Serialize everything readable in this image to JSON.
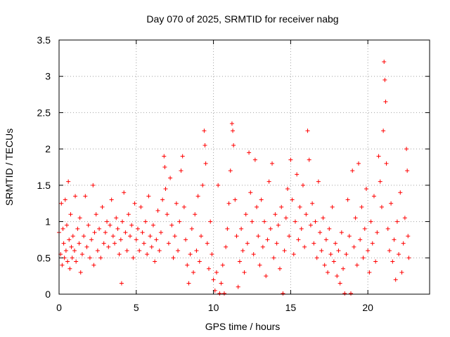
{
  "chart_data": {
    "type": "scatter",
    "title": "Day 070 of 2025, SRMTID for receiver nabg",
    "xlabel": "GPS time / hours",
    "ylabel": "SRMTID / TECUs",
    "xlim": [
      0,
      24
    ],
    "ylim": [
      0,
      3.5
    ],
    "x_ticks": [
      0,
      5,
      10,
      15,
      20
    ],
    "x_tick_labels": [
      "0",
      "5",
      "10",
      "15",
      "20"
    ],
    "y_ticks": [
      0,
      0.5,
      1,
      1.5,
      2,
      2.5,
      3,
      3.5
    ],
    "y_tick_labels": [
      "0",
      "0.5",
      "1",
      "1.5",
      "2",
      "2.5",
      "3",
      "3.5"
    ],
    "grid": true,
    "marker": "+",
    "color": "#ff0000",
    "series": [
      {
        "name": "SRMTID",
        "points": [
          [
            0.0,
            0.85
          ],
          [
            0.1,
            0.55
          ],
          [
            0.15,
            1.25
          ],
          [
            0.2,
            0.4
          ],
          [
            0.25,
            0.9
          ],
          [
            0.3,
            0.7
          ],
          [
            0.35,
            0.5
          ],
          [
            0.4,
            1.3
          ],
          [
            0.45,
            0.6
          ],
          [
            0.5,
            0.95
          ],
          [
            0.55,
            0.45
          ],
          [
            0.6,
            1.55
          ],
          [
            0.65,
            0.75
          ],
          [
            0.7,
            0.35
          ],
          [
            0.75,
            1.1
          ],
          [
            0.8,
            0.65
          ],
          [
            0.85,
            0.5
          ],
          [
            0.9,
            0.8
          ],
          [
            1.0,
            0.6
          ],
          [
            1.05,
            1.35
          ],
          [
            1.1,
            0.45
          ],
          [
            1.2,
            0.9
          ],
          [
            1.3,
            0.7
          ],
          [
            1.35,
            1.05
          ],
          [
            1.4,
            0.3
          ],
          [
            1.5,
            0.55
          ],
          [
            1.6,
            0.8
          ],
          [
            1.7,
            1.35
          ],
          [
            1.8,
            0.65
          ],
          [
            1.9,
            0.95
          ],
          [
            2.0,
            0.5
          ],
          [
            2.1,
            0.75
          ],
          [
            2.2,
            1.5
          ],
          [
            2.25,
            0.4
          ],
          [
            2.3,
            0.85
          ],
          [
            2.4,
            1.1
          ],
          [
            2.5,
            0.6
          ],
          [
            2.6,
            0.9
          ],
          [
            2.7,
            0.5
          ],
          [
            2.8,
            1.2
          ],
          [
            2.9,
            0.7
          ],
          [
            3.0,
            0.85
          ],
          [
            3.1,
            1.0
          ],
          [
            3.2,
            0.65
          ],
          [
            3.3,
            0.95
          ],
          [
            3.4,
            1.3
          ],
          [
            3.5,
            0.8
          ],
          [
            3.6,
            0.7
          ],
          [
            3.7,
            1.05
          ],
          [
            3.8,
            0.9
          ],
          [
            3.9,
            0.55
          ],
          [
            4.0,
            0.75
          ],
          [
            4.05,
            0.15
          ],
          [
            4.1,
            1.0
          ],
          [
            4.2,
            1.4
          ],
          [
            4.3,
            0.85
          ],
          [
            4.4,
            0.6
          ],
          [
            4.5,
            1.1
          ],
          [
            4.6,
            0.8
          ],
          [
            4.7,
            0.95
          ],
          [
            4.8,
            0.5
          ],
          [
            4.9,
            1.25
          ],
          [
            5.0,
            0.75
          ],
          [
            5.1,
            0.9
          ],
          [
            5.2,
            0.6
          ],
          [
            5.3,
            1.2
          ],
          [
            5.4,
            0.85
          ],
          [
            5.5,
            0.7
          ],
          [
            5.6,
            1.0
          ],
          [
            5.7,
            0.55
          ],
          [
            5.8,
            1.35
          ],
          [
            5.9,
            0.8
          ],
          [
            6.0,
            0.65
          ],
          [
            6.1,
            0.95
          ],
          [
            6.2,
            0.45
          ],
          [
            6.3,
            0.75
          ],
          [
            6.4,
            1.15
          ],
          [
            6.5,
            0.6
          ],
          [
            6.6,
            0.85
          ],
          [
            6.7,
            1.3
          ],
          [
            6.8,
            1.9
          ],
          [
            6.85,
            1.75
          ],
          [
            6.9,
            1.45
          ],
          [
            7.0,
            1.1
          ],
          [
            7.1,
            0.7
          ],
          [
            7.2,
            1.6
          ],
          [
            7.3,
            0.95
          ],
          [
            7.4,
            0.5
          ],
          [
            7.5,
            0.8
          ],
          [
            7.6,
            1.25
          ],
          [
            7.7,
            0.6
          ],
          [
            7.8,
            1.0
          ],
          [
            7.9,
            1.7
          ],
          [
            8.0,
            1.9
          ],
          [
            8.1,
            1.2
          ],
          [
            8.2,
            0.75
          ],
          [
            8.3,
            0.4
          ],
          [
            8.4,
            0.15
          ],
          [
            8.5,
            0.55
          ],
          [
            8.6,
            0.9
          ],
          [
            8.7,
            0.3
          ],
          [
            8.8,
            1.1
          ],
          [
            8.9,
            0.6
          ],
          [
            9.0,
            1.35
          ],
          [
            9.1,
            0.45
          ],
          [
            9.2,
            0.8
          ],
          [
            9.3,
            1.5
          ],
          [
            9.4,
            2.25
          ],
          [
            9.45,
            2.05
          ],
          [
            9.5,
            1.8
          ],
          [
            9.6,
            0.7
          ],
          [
            9.7,
            0.35
          ],
          [
            9.8,
            1.0
          ],
          [
            9.9,
            0.55
          ],
          [
            10.0,
            0.2
          ],
          [
            10.1,
            0.05
          ],
          [
            10.2,
            0.3
          ],
          [
            10.3,
            1.5
          ],
          [
            10.4,
            0.0
          ],
          [
            10.5,
            0.15
          ],
          [
            10.6,
            0.4
          ],
          [
            10.7,
            0.0
          ],
          [
            10.8,
            0.65
          ],
          [
            10.9,
            0.9
          ],
          [
            11.0,
            1.25
          ],
          [
            11.1,
            1.7
          ],
          [
            11.2,
            2.35
          ],
          [
            11.25,
            2.25
          ],
          [
            11.3,
            2.05
          ],
          [
            11.4,
            1.3
          ],
          [
            11.5,
            0.8
          ],
          [
            11.6,
            0.1
          ],
          [
            11.7,
            0.45
          ],
          [
            11.8,
            0.9
          ],
          [
            11.9,
            0.6
          ],
          [
            12.0,
            0.3
          ],
          [
            12.1,
            1.1
          ],
          [
            12.2,
            0.7
          ],
          [
            12.3,
            1.95
          ],
          [
            12.4,
            1.4
          ],
          [
            12.5,
            1.0
          ],
          [
            12.6,
            0.55
          ],
          [
            12.7,
            1.85
          ],
          [
            12.8,
            1.2
          ],
          [
            12.9,
            0.8
          ],
          [
            13.0,
            0.4
          ],
          [
            13.1,
            1.3
          ],
          [
            13.2,
            0.65
          ],
          [
            13.3,
            1.0
          ],
          [
            13.4,
            0.25
          ],
          [
            13.5,
            0.75
          ],
          [
            13.6,
            1.55
          ],
          [
            13.7,
            0.9
          ],
          [
            13.8,
            1.8
          ],
          [
            13.9,
            0.5
          ],
          [
            14.0,
            1.1
          ],
          [
            14.1,
            0.7
          ],
          [
            14.2,
            0.95
          ],
          [
            14.3,
            0.35
          ],
          [
            14.4,
            1.2
          ],
          [
            14.5,
            0.0
          ],
          [
            14.6,
            0.6
          ],
          [
            14.7,
            1.05
          ],
          [
            14.8,
            1.45
          ],
          [
            14.9,
            0.8
          ],
          [
            15.0,
            1.85
          ],
          [
            15.1,
            1.3
          ],
          [
            15.2,
            0.55
          ],
          [
            15.3,
            1.0
          ],
          [
            15.4,
            1.65
          ],
          [
            15.5,
            0.75
          ],
          [
            15.6,
            1.2
          ],
          [
            15.7,
            0.9
          ],
          [
            15.8,
            1.5
          ],
          [
            15.9,
            0.65
          ],
          [
            16.0,
            1.1
          ],
          [
            16.1,
            2.25
          ],
          [
            16.2,
            1.85
          ],
          [
            16.3,
            0.95
          ],
          [
            16.4,
            1.25
          ],
          [
            16.5,
            0.7
          ],
          [
            16.6,
            1.0
          ],
          [
            16.7,
            0.5
          ],
          [
            16.8,
            1.55
          ],
          [
            16.9,
            0.85
          ],
          [
            17.0,
            0.6
          ],
          [
            17.1,
            1.05
          ],
          [
            17.2,
            0.4
          ],
          [
            17.3,
            0.75
          ],
          [
            17.4,
            0.3
          ],
          [
            17.5,
            0.9
          ],
          [
            17.6,
            0.55
          ],
          [
            17.7,
            1.2
          ],
          [
            17.8,
            0.45
          ],
          [
            17.9,
            0.7
          ],
          [
            18.0,
            0.25
          ],
          [
            18.1,
            0.6
          ],
          [
            18.2,
            0.15
          ],
          [
            18.3,
            0.85
          ],
          [
            18.4,
            0.35
          ],
          [
            18.5,
            0.0
          ],
          [
            18.6,
            0.55
          ],
          [
            18.7,
            1.3
          ],
          [
            18.8,
            0.8
          ],
          [
            18.9,
            0.0
          ],
          [
            19.0,
            1.7
          ],
          [
            19.1,
            0.65
          ],
          [
            19.2,
            1.05
          ],
          [
            19.3,
            0.4
          ],
          [
            19.4,
            1.8
          ],
          [
            19.5,
            0.75
          ],
          [
            19.6,
            1.2
          ],
          [
            19.7,
            0.5
          ],
          [
            19.8,
            0.9
          ],
          [
            19.9,
            1.45
          ],
          [
            20.0,
            0.6
          ],
          [
            20.1,
            0.3
          ],
          [
            20.2,
            1.0
          ],
          [
            20.3,
            0.7
          ],
          [
            20.4,
            1.35
          ],
          [
            20.5,
            0.45
          ],
          [
            20.6,
            0.85
          ],
          [
            20.7,
            1.9
          ],
          [
            20.8,
            1.55
          ],
          [
            20.9,
            1.2
          ],
          [
            21.0,
            2.25
          ],
          [
            21.05,
            3.2
          ],
          [
            21.1,
            2.95
          ],
          [
            21.15,
            2.65
          ],
          [
            21.2,
            1.8
          ],
          [
            21.3,
            0.9
          ],
          [
            21.4,
            0.6
          ],
          [
            21.5,
            1.25
          ],
          [
            21.6,
            0.45
          ],
          [
            21.7,
            0.75
          ],
          [
            21.8,
            0.2
          ],
          [
            21.9,
            1.0
          ],
          [
            22.0,
            0.55
          ],
          [
            22.1,
            1.4
          ],
          [
            22.2,
            0.3
          ],
          [
            22.3,
            0.7
          ],
          [
            22.4,
            1.05
          ],
          [
            22.5,
            2.0
          ],
          [
            22.55,
            1.7
          ],
          [
            22.6,
            0.8
          ],
          [
            22.65,
            0.5
          ]
        ]
      }
    ]
  }
}
